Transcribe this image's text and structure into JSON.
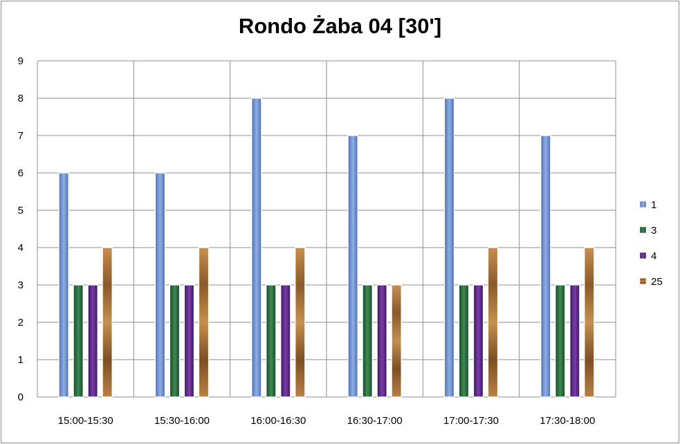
{
  "chart_data": {
    "type": "bar",
    "title": "Rondo Żaba 04 [30']",
    "categories": [
      "15:00-15:30",
      "15:30-16:00",
      "16:00-16:30",
      "16:30-17:00",
      "17:00-17:30",
      "17:30-18:00"
    ],
    "series": [
      {
        "name": "1",
        "values": [
          6,
          6,
          8,
          7,
          8,
          7
        ]
      },
      {
        "name": "3",
        "values": [
          3,
          3,
          3,
          3,
          3,
          3
        ]
      },
      {
        "name": "4",
        "values": [
          3,
          3,
          3,
          3,
          3,
          3
        ]
      },
      {
        "name": "25",
        "values": [
          4,
          4,
          4,
          3,
          4,
          4
        ]
      }
    ],
    "ylim": [
      0,
      9
    ],
    "yticks": [
      "0",
      "1",
      "2",
      "3",
      "4",
      "5",
      "6",
      "7",
      "8",
      "9"
    ],
    "xlabel": "",
    "ylabel": "",
    "grid": true,
    "legend_position": "right",
    "colors": {
      "1": "#6f90cf",
      "3": "#2a6a3c",
      "4": "#5b2a86",
      "25": "#a8723c"
    }
  }
}
